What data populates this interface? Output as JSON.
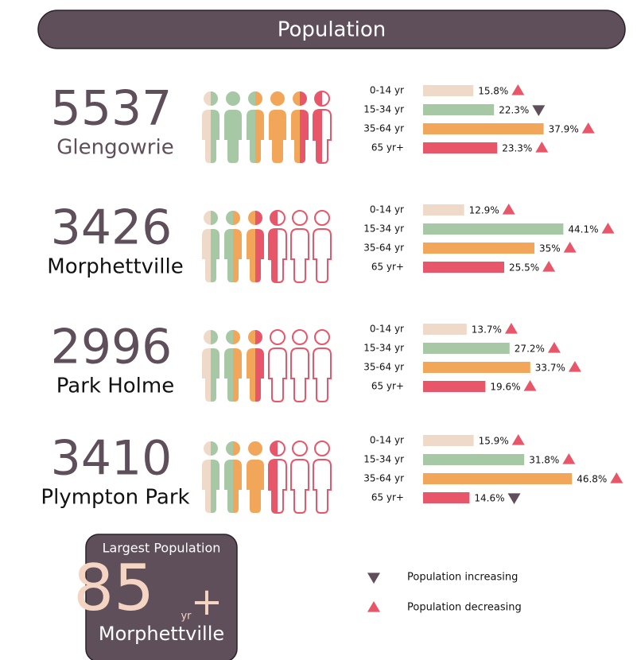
{
  "header": {
    "title": "Population"
  },
  "suburbs": [
    {
      "population": 5537,
      "name": "Glengowrie",
      "figures": [
        [
          "#efd9c9",
          "#a6c8a4"
        ],
        [
          "#a6c8a4",
          "#a6c8a4"
        ],
        [
          "#a6c8a4",
          "#f2a65a"
        ],
        [
          "#f2a65a",
          "#f2a65a"
        ],
        [
          "#f2a65a",
          "#e8566a"
        ],
        [
          "#e8566a",
          "#ffffff"
        ]
      ],
      "groups": [
        {
          "label": "0-14 yr",
          "value": 15.8,
          "value_label": "15.8%",
          "color": "#efd9c9",
          "marker": "up"
        },
        {
          "label": "15-34 yr",
          "value": 22.3,
          "value_label": "22.3%",
          "color": "#a6c8a4",
          "marker": "down"
        },
        {
          "label": "35-64 yr",
          "value": 37.9,
          "value_label": "37.9%",
          "color": "#f2a65a",
          "marker": "up"
        },
        {
          "label": "65 yr+",
          "value": 23.3,
          "value_label": "23.3%",
          "color": "#e8566a",
          "marker": "up"
        }
      ]
    },
    {
      "population": 3426,
      "name": "Morphettville",
      "figures": [
        [
          "#efd9c9",
          "#a6c8a4"
        ],
        [
          "#a6c8a4",
          "#f2a65a"
        ],
        [
          "#f2a65a",
          "#e8566a"
        ],
        [
          "#e8566a",
          "#ffffff"
        ],
        [
          "#ffffff",
          "#ffffff"
        ],
        [
          "#ffffff",
          "#ffffff"
        ]
      ],
      "groups": [
        {
          "label": "0-14 yr",
          "value": 12.9,
          "value_label": "12.9%",
          "color": "#efd9c9",
          "marker": "up"
        },
        {
          "label": "15-34 yr",
          "value": 44.1,
          "value_label": "44.1%",
          "color": "#a6c8a4",
          "marker": "up"
        },
        {
          "label": "35-64 yr",
          "value": 35,
          "value_label": "35%",
          "color": "#f2a65a",
          "marker": "up"
        },
        {
          "label": "65 yr+",
          "value": 25.5,
          "value_label": "25.5%",
          "color": "#e8566a",
          "marker": "up"
        }
      ]
    },
    {
      "population": 2996,
      "name": "Park Holme",
      "figures": [
        [
          "#efd9c9",
          "#a6c8a4"
        ],
        [
          "#a6c8a4",
          "#f2a65a"
        ],
        [
          "#f2a65a",
          "#e8566a"
        ],
        [
          "#ffffff",
          "#ffffff"
        ],
        [
          "#ffffff",
          "#ffffff"
        ],
        [
          "#ffffff",
          "#ffffff"
        ]
      ],
      "groups": [
        {
          "label": "0-14 yr",
          "value": 13.7,
          "value_label": "13.7%",
          "color": "#efd9c9",
          "marker": "up"
        },
        {
          "label": "15-34 yr",
          "value": 27.2,
          "value_label": "27.2%",
          "color": "#a6c8a4",
          "marker": "up"
        },
        {
          "label": "35-64 yr",
          "value": 33.7,
          "value_label": "33.7%",
          "color": "#f2a65a",
          "marker": "up"
        },
        {
          "label": "65 yr+",
          "value": 19.6,
          "value_label": "19.6%",
          "color": "#e8566a",
          "marker": "up"
        }
      ]
    },
    {
      "population": 3410,
      "name": "Plympton Park",
      "figures": [
        [
          "#efd9c9",
          "#a6c8a4"
        ],
        [
          "#a6c8a4",
          "#f2a65a"
        ],
        [
          "#f2a65a",
          "#f2a65a"
        ],
        [
          "#e8566a",
          "#ffffff"
        ],
        [
          "#ffffff",
          "#ffffff"
        ],
        [
          "#ffffff",
          "#ffffff"
        ]
      ],
      "groups": [
        {
          "label": "0-14 yr",
          "value": 15.9,
          "value_label": "15.9%",
          "color": "#efd9c9",
          "marker": "up"
        },
        {
          "label": "15-34 yr",
          "value": 31.8,
          "value_label": "31.8%",
          "color": "#a6c8a4",
          "marker": "up"
        },
        {
          "label": "35-64 yr",
          "value": 46.8,
          "value_label": "46.8%",
          "color": "#f2a65a",
          "marker": "up"
        },
        {
          "label": "65 yr+",
          "value": 14.6,
          "value_label": "14.6%",
          "color": "#e8566a",
          "marker": "down"
        }
      ]
    }
  ],
  "highlight": {
    "title": "Largest Population",
    "value": 85,
    "unit": "yr",
    "suffix": "+",
    "name": "Morphettville"
  },
  "legend": [
    {
      "marker": "down",
      "label": "Population increasing"
    },
    {
      "marker": "up",
      "label": "Population decreasing"
    }
  ],
  "marker_colors": {
    "up": "#e8566a",
    "down": "#5e4f5a"
  }
}
